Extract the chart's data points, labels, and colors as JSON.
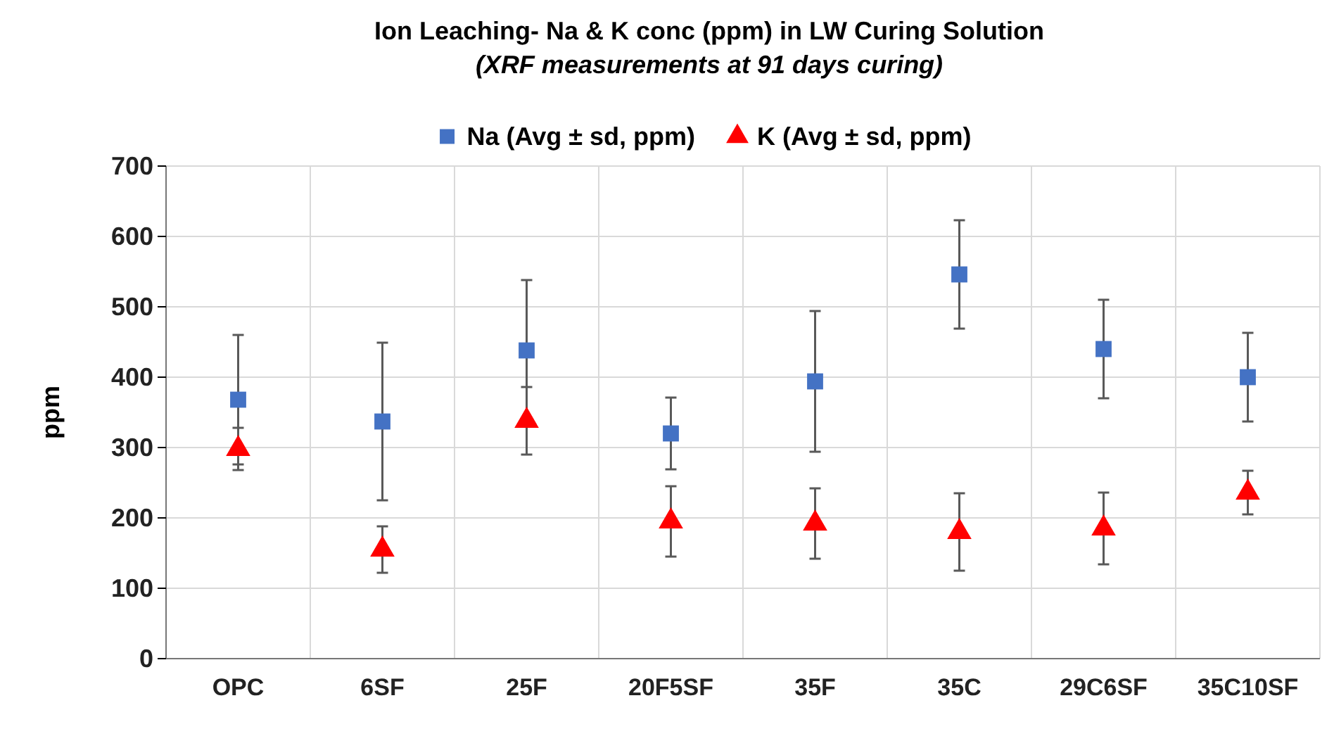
{
  "chart_data": {
    "type": "scatter",
    "title": "Ion Leaching- Na & K conc (ppm) in LW Curing Solution",
    "subtitle": "(XRF measurements at 91 days curing)",
    "ylabel": "ppm",
    "categories": [
      "OPC",
      "6SF",
      "25F",
      "20F5SF",
      "35F",
      "35C",
      "29C6SF",
      "35C10SF"
    ],
    "series": [
      {
        "name": "Na (Avg ± sd, ppm)",
        "color": "#4472c4",
        "marker": "square",
        "values": [
          368,
          337,
          438,
          320,
          394,
          546,
          440,
          400
        ],
        "errors": [
          92,
          112,
          100,
          51,
          100,
          77,
          70,
          63
        ]
      },
      {
        "name": "K (Avg ± sd, ppm)",
        "color": "#ff0000",
        "marker": "triangle",
        "values": [
          298,
          155,
          338,
          195,
          192,
          180,
          185,
          236
        ],
        "errors": [
          30,
          33,
          48,
          50,
          50,
          55,
          51,
          31
        ]
      }
    ],
    "ylim": [
      0,
      700
    ],
    "yticks": [
      0,
      100,
      200,
      300,
      400,
      500,
      600,
      700
    ],
    "grid": true,
    "legend": "top"
  }
}
